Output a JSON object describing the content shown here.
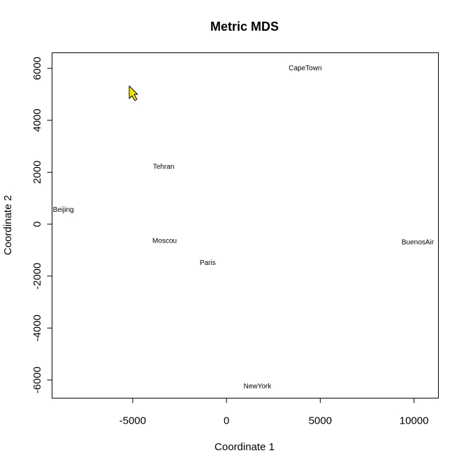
{
  "chart_data": {
    "type": "scatter",
    "title": "Metric MDS",
    "xlabel": "Coordinate 1",
    "ylabel": "Coordinate 2",
    "xlim": [
      -9300,
      11300
    ],
    "ylim": [
      -6700,
      6600
    ],
    "grid": false,
    "x_ticks": [
      -5000,
      0,
      5000,
      10000
    ],
    "y_ticks": [
      -6000,
      -4000,
      -2000,
      0,
      2000,
      4000,
      6000
    ],
    "x_tick_labels": [
      "-5000",
      "0",
      "5000",
      "10000"
    ],
    "y_tick_labels": [
      "-6000",
      "-4000",
      "-2000",
      "0",
      "2000",
      "4000",
      "6000"
    ],
    "points": [
      {
        "label": "CapeTown",
        "x": 4200,
        "y": 6000
      },
      {
        "label": "Tehran",
        "x": -3350,
        "y": 2200
      },
      {
        "label": "Beijing",
        "x": -8700,
        "y": 550
      },
      {
        "label": "Moscou",
        "x": -3300,
        "y": -650
      },
      {
        "label": "BuenosAir",
        "x": 10200,
        "y": -700
      },
      {
        "label": "Paris",
        "x": -1000,
        "y": -1500
      },
      {
        "label": "NewYork",
        "x": 1650,
        "y": -6250
      }
    ],
    "cursor_color": "#f2e600"
  }
}
